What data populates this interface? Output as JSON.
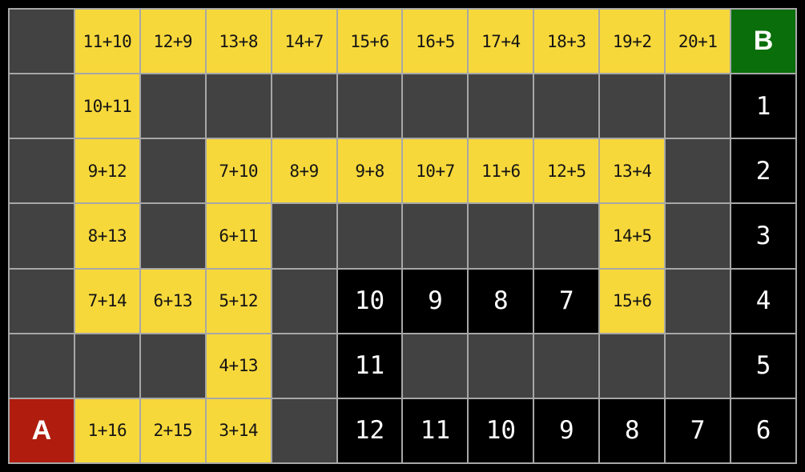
{
  "title": "math-maze-puzzle",
  "labels": {
    "start": "A",
    "end": "B"
  },
  "colors": {
    "background": "#000000",
    "grid_line": "#a7a7a7",
    "empty_cell": "#424242",
    "expression_cell": "#f7d83b",
    "number_cell": "#000000",
    "start_cell": "#b01d0e",
    "end_cell": "#0a6e0a",
    "expression_text": "#141414",
    "number_text": "#ffffff"
  },
  "board": {
    "rows": 7,
    "cols": 12,
    "cells": [
      [
        {
          "type": "empty",
          "text": ""
        },
        {
          "type": "expr",
          "text": "11+10"
        },
        {
          "type": "expr",
          "text": "12+9"
        },
        {
          "type": "expr",
          "text": "13+8"
        },
        {
          "type": "expr",
          "text": "14+7"
        },
        {
          "type": "expr",
          "text": "15+6"
        },
        {
          "type": "expr",
          "text": "16+5"
        },
        {
          "type": "expr",
          "text": "17+4"
        },
        {
          "type": "expr",
          "text": "18+3"
        },
        {
          "type": "expr",
          "text": "19+2"
        },
        {
          "type": "expr",
          "text": "20+1"
        },
        {
          "type": "end",
          "text": "B"
        }
      ],
      [
        {
          "type": "empty",
          "text": ""
        },
        {
          "type": "expr",
          "text": "10+11"
        },
        {
          "type": "empty",
          "text": ""
        },
        {
          "type": "empty",
          "text": ""
        },
        {
          "type": "empty",
          "text": ""
        },
        {
          "type": "empty",
          "text": ""
        },
        {
          "type": "empty",
          "text": ""
        },
        {
          "type": "empty",
          "text": ""
        },
        {
          "type": "empty",
          "text": ""
        },
        {
          "type": "empty",
          "text": ""
        },
        {
          "type": "empty",
          "text": ""
        },
        {
          "type": "num",
          "text": "1"
        }
      ],
      [
        {
          "type": "empty",
          "text": ""
        },
        {
          "type": "expr",
          "text": "9+12"
        },
        {
          "type": "empty",
          "text": ""
        },
        {
          "type": "expr",
          "text": "7+10"
        },
        {
          "type": "expr",
          "text": "8+9"
        },
        {
          "type": "expr",
          "text": "9+8"
        },
        {
          "type": "expr",
          "text": "10+7"
        },
        {
          "type": "expr",
          "text": "11+6"
        },
        {
          "type": "expr",
          "text": "12+5"
        },
        {
          "type": "expr",
          "text": "13+4"
        },
        {
          "type": "empty",
          "text": ""
        },
        {
          "type": "num",
          "text": "2"
        }
      ],
      [
        {
          "type": "empty",
          "text": ""
        },
        {
          "type": "expr",
          "text": "8+13"
        },
        {
          "type": "empty",
          "text": ""
        },
        {
          "type": "expr",
          "text": "6+11"
        },
        {
          "type": "empty",
          "text": ""
        },
        {
          "type": "empty",
          "text": ""
        },
        {
          "type": "empty",
          "text": ""
        },
        {
          "type": "empty",
          "text": ""
        },
        {
          "type": "empty",
          "text": ""
        },
        {
          "type": "expr",
          "text": "14+5"
        },
        {
          "type": "empty",
          "text": ""
        },
        {
          "type": "num",
          "text": "3"
        }
      ],
      [
        {
          "type": "empty",
          "text": ""
        },
        {
          "type": "expr",
          "text": "7+14"
        },
        {
          "type": "expr",
          "text": "6+13"
        },
        {
          "type": "expr",
          "text": "5+12"
        },
        {
          "type": "empty",
          "text": ""
        },
        {
          "type": "num",
          "text": "10"
        },
        {
          "type": "num",
          "text": "9"
        },
        {
          "type": "num",
          "text": "8"
        },
        {
          "type": "num",
          "text": "7"
        },
        {
          "type": "expr",
          "text": "15+6"
        },
        {
          "type": "empty",
          "text": ""
        },
        {
          "type": "num",
          "text": "4"
        }
      ],
      [
        {
          "type": "empty",
          "text": ""
        },
        {
          "type": "empty",
          "text": ""
        },
        {
          "type": "empty",
          "text": ""
        },
        {
          "type": "expr",
          "text": "4+13"
        },
        {
          "type": "empty",
          "text": ""
        },
        {
          "type": "num",
          "text": "11"
        },
        {
          "type": "empty",
          "text": ""
        },
        {
          "type": "empty",
          "text": ""
        },
        {
          "type": "empty",
          "text": ""
        },
        {
          "type": "empty",
          "text": ""
        },
        {
          "type": "empty",
          "text": ""
        },
        {
          "type": "num",
          "text": "5"
        }
      ],
      [
        {
          "type": "start",
          "text": "A"
        },
        {
          "type": "expr",
          "text": "1+16"
        },
        {
          "type": "expr",
          "text": "2+15"
        },
        {
          "type": "expr",
          "text": "3+14"
        },
        {
          "type": "empty",
          "text": ""
        },
        {
          "type": "num",
          "text": "12"
        },
        {
          "type": "num",
          "text": "11"
        },
        {
          "type": "num",
          "text": "10"
        },
        {
          "type": "num",
          "text": "9"
        },
        {
          "type": "num",
          "text": "8"
        },
        {
          "type": "num",
          "text": "7"
        },
        {
          "type": "num",
          "text": "6"
        }
      ]
    ]
  }
}
